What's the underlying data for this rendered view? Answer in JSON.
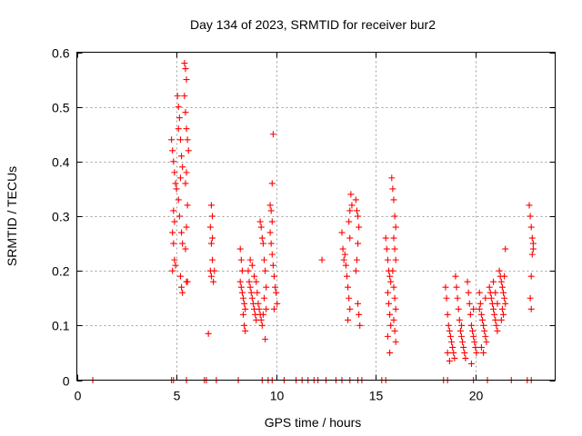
{
  "chart_data": {
    "type": "scatter",
    "title": "Day 134 of 2023, SRMTID for receiver bur2",
    "xlabel": "GPS time / hours",
    "ylabel": "SRMTID / TECUs",
    "xlim": [
      0,
      24
    ],
    "ylim": [
      0,
      0.6
    ],
    "xticks": [
      0,
      5,
      10,
      15,
      20
    ],
    "xtick_labels": [
      "0",
      "5",
      "10",
      "15",
      "20"
    ],
    "yticks": [
      0,
      0.1,
      0.2,
      0.3,
      0.4,
      0.5,
      0.6
    ],
    "ytick_labels": [
      "0",
      "0.1",
      "0.2",
      "0.3",
      "0.4",
      "0.5",
      "0.6"
    ],
    "grid": true,
    "marker": "plus",
    "series": [
      {
        "name": "SRMTID",
        "color": "#ff0000",
        "points": [
          [
            0.8,
            0.0
          ],
          [
            4.75,
            0.44
          ],
          [
            4.8,
            0.42
          ],
          [
            4.85,
            0.4
          ],
          [
            4.9,
            0.38
          ],
          [
            4.95,
            0.36
          ],
          [
            5.0,
            0.35
          ],
          [
            4.85,
            0.31
          ],
          [
            4.9,
            0.29
          ],
          [
            4.8,
            0.27
          ],
          [
            4.85,
            0.25
          ],
          [
            4.9,
            0.22
          ],
          [
            4.8,
            0.2
          ],
          [
            4.95,
            0.21
          ],
          [
            5.05,
            0.52
          ],
          [
            5.1,
            0.5
          ],
          [
            5.15,
            0.48
          ],
          [
            5.1,
            0.46
          ],
          [
            5.2,
            0.44
          ],
          [
            5.25,
            0.41
          ],
          [
            5.3,
            0.39
          ],
          [
            5.2,
            0.37
          ],
          [
            5.1,
            0.33
          ],
          [
            5.15,
            0.3
          ],
          [
            5.25,
            0.27
          ],
          [
            5.3,
            0.25
          ],
          [
            5.2,
            0.19
          ],
          [
            5.25,
            0.17
          ],
          [
            5.3,
            0.16
          ],
          [
            5.4,
            0.58
          ],
          [
            5.45,
            0.57
          ],
          [
            5.5,
            0.55
          ],
          [
            5.4,
            0.52
          ],
          [
            5.45,
            0.49
          ],
          [
            5.5,
            0.46
          ],
          [
            5.55,
            0.44
          ],
          [
            5.6,
            0.42
          ],
          [
            5.5,
            0.38
          ],
          [
            5.45,
            0.36
          ],
          [
            5.55,
            0.32
          ],
          [
            5.5,
            0.28
          ],
          [
            5.45,
            0.24
          ],
          [
            5.5,
            0.18
          ],
          [
            5.55,
            0.18
          ],
          [
            6.6,
            0.085
          ],
          [
            6.75,
            0.32
          ],
          [
            6.8,
            0.3
          ],
          [
            6.7,
            0.28
          ],
          [
            6.75,
            0.25
          ],
          [
            6.8,
            0.22
          ],
          [
            6.7,
            0.2
          ],
          [
            6.75,
            0.19
          ],
          [
            6.85,
            0.18
          ],
          [
            6.9,
            0.2
          ],
          [
            6.8,
            0.26
          ],
          [
            8.2,
            0.24
          ],
          [
            8.25,
            0.22
          ],
          [
            8.3,
            0.2
          ],
          [
            8.2,
            0.18
          ],
          [
            8.25,
            0.17
          ],
          [
            8.3,
            0.16
          ],
          [
            8.35,
            0.15
          ],
          [
            8.4,
            0.14
          ],
          [
            8.45,
            0.13
          ],
          [
            8.35,
            0.12
          ],
          [
            8.4,
            0.1
          ],
          [
            8.45,
            0.09
          ],
          [
            8.6,
            0.2
          ],
          [
            8.65,
            0.18
          ],
          [
            8.7,
            0.17
          ],
          [
            8.75,
            0.16
          ],
          [
            8.8,
            0.15
          ],
          [
            8.85,
            0.14
          ],
          [
            8.9,
            0.13
          ],
          [
            8.95,
            0.12
          ],
          [
            9.0,
            0.11
          ],
          [
            8.9,
            0.19
          ],
          [
            8.8,
            0.21
          ],
          [
            8.7,
            0.22
          ],
          [
            9.0,
            0.18
          ],
          [
            9.05,
            0.16
          ],
          [
            9.1,
            0.14
          ],
          [
            9.15,
            0.13
          ],
          [
            9.2,
            0.12
          ],
          [
            9.25,
            0.11
          ],
          [
            9.3,
            0.1
          ],
          [
            9.35,
            0.12
          ],
          [
            9.2,
            0.29
          ],
          [
            9.25,
            0.28
          ],
          [
            9.3,
            0.26
          ],
          [
            9.35,
            0.25
          ],
          [
            9.4,
            0.22
          ],
          [
            9.45,
            0.2
          ],
          [
            9.5,
            0.17
          ],
          [
            9.4,
            0.15
          ],
          [
            9.5,
            0.13
          ],
          [
            9.45,
            0.075
          ],
          [
            9.7,
            0.32
          ],
          [
            9.75,
            0.31
          ],
          [
            9.8,
            0.29
          ],
          [
            9.7,
            0.27
          ],
          [
            9.75,
            0.25
          ],
          [
            9.8,
            0.23
          ],
          [
            9.85,
            0.21
          ],
          [
            9.9,
            0.19
          ],
          [
            9.95,
            0.17
          ],
          [
            10.0,
            0.16
          ],
          [
            10.05,
            0.14
          ],
          [
            9.9,
            0.13
          ],
          [
            9.8,
            0.36
          ],
          [
            9.85,
            0.45
          ],
          [
            12.3,
            0.22
          ],
          [
            13.3,
            0.27
          ],
          [
            13.35,
            0.24
          ],
          [
            13.4,
            0.22
          ],
          [
            13.45,
            0.23
          ],
          [
            13.5,
            0.21
          ],
          [
            13.55,
            0.19
          ],
          [
            13.6,
            0.17
          ],
          [
            13.65,
            0.15
          ],
          [
            13.7,
            0.13
          ],
          [
            13.6,
            0.11
          ],
          [
            13.65,
            0.29
          ],
          [
            13.7,
            0.31
          ],
          [
            13.75,
            0.34
          ],
          [
            13.8,
            0.32
          ],
          [
            13.7,
            0.26
          ],
          [
            14.0,
            0.33
          ],
          [
            14.05,
            0.31
          ],
          [
            14.1,
            0.3
          ],
          [
            14.15,
            0.28
          ],
          [
            14.1,
            0.25
          ],
          [
            14.05,
            0.22
          ],
          [
            14.0,
            0.2
          ],
          [
            14.1,
            0.14
          ],
          [
            14.15,
            0.12
          ],
          [
            14.2,
            0.1
          ],
          [
            15.5,
            0.26
          ],
          [
            15.55,
            0.24
          ],
          [
            15.6,
            0.22
          ],
          [
            15.65,
            0.2
          ],
          [
            15.7,
            0.19
          ],
          [
            15.75,
            0.18
          ],
          [
            15.6,
            0.16
          ],
          [
            15.65,
            0.14
          ],
          [
            15.7,
            0.12
          ],
          [
            15.75,
            0.1
          ],
          [
            15.6,
            0.08
          ],
          [
            15.7,
            0.05
          ],
          [
            15.8,
            0.37
          ],
          [
            15.85,
            0.35
          ],
          [
            15.9,
            0.33
          ],
          [
            15.95,
            0.3
          ],
          [
            16.0,
            0.28
          ],
          [
            15.9,
            0.26
          ],
          [
            15.95,
            0.24
          ],
          [
            16.0,
            0.22
          ],
          [
            15.85,
            0.2
          ],
          [
            15.9,
            0.17
          ],
          [
            15.95,
            0.15
          ],
          [
            16.0,
            0.13
          ],
          [
            15.9,
            0.11
          ],
          [
            15.95,
            0.09
          ],
          [
            16.0,
            0.07
          ],
          [
            18.5,
            0.17
          ],
          [
            18.55,
            0.15
          ],
          [
            18.6,
            0.12
          ],
          [
            18.65,
            0.1
          ],
          [
            18.7,
            0.09
          ],
          [
            18.75,
            0.08
          ],
          [
            18.8,
            0.07
          ],
          [
            18.85,
            0.06
          ],
          [
            18.9,
            0.05
          ],
          [
            18.95,
            0.04
          ],
          [
            18.6,
            0.05
          ],
          [
            18.7,
            0.035
          ],
          [
            19.0,
            0.19
          ],
          [
            19.05,
            0.17
          ],
          [
            19.1,
            0.15
          ],
          [
            19.15,
            0.13
          ],
          [
            19.2,
            0.11
          ],
          [
            19.25,
            0.09
          ],
          [
            19.3,
            0.08
          ],
          [
            19.35,
            0.07
          ],
          [
            19.4,
            0.06
          ],
          [
            19.45,
            0.05
          ],
          [
            19.5,
            0.04
          ],
          [
            19.3,
            0.1
          ],
          [
            19.6,
            0.18
          ],
          [
            19.65,
            0.16
          ],
          [
            19.7,
            0.14
          ],
          [
            19.75,
            0.12
          ],
          [
            19.8,
            0.1
          ],
          [
            19.85,
            0.09
          ],
          [
            19.9,
            0.08
          ],
          [
            19.95,
            0.07
          ],
          [
            20.0,
            0.06
          ],
          [
            20.05,
            0.05
          ],
          [
            19.8,
            0.03
          ],
          [
            19.9,
            0.13
          ],
          [
            20.2,
            0.16
          ],
          [
            20.25,
            0.14
          ],
          [
            20.3,
            0.12
          ],
          [
            20.35,
            0.11
          ],
          [
            20.4,
            0.1
          ],
          [
            20.45,
            0.09
          ],
          [
            20.5,
            0.08
          ],
          [
            20.55,
            0.07
          ],
          [
            20.3,
            0.06
          ],
          [
            20.4,
            0.05
          ],
          [
            20.2,
            0.13
          ],
          [
            20.5,
            0.15
          ],
          [
            20.7,
            0.17
          ],
          [
            20.75,
            0.16
          ],
          [
            20.8,
            0.15
          ],
          [
            20.85,
            0.14
          ],
          [
            20.9,
            0.13
          ],
          [
            20.95,
            0.12
          ],
          [
            21.0,
            0.11
          ],
          [
            21.05,
            0.1
          ],
          [
            21.1,
            0.09
          ],
          [
            20.9,
            0.18
          ],
          [
            21.0,
            0.16
          ],
          [
            21.1,
            0.14
          ],
          [
            21.2,
            0.2
          ],
          [
            21.25,
            0.19
          ],
          [
            21.3,
            0.18
          ],
          [
            21.35,
            0.17
          ],
          [
            21.4,
            0.16
          ],
          [
            21.45,
            0.15
          ],
          [
            21.5,
            0.14
          ],
          [
            21.35,
            0.13
          ],
          [
            21.4,
            0.12
          ],
          [
            21.5,
            0.24
          ],
          [
            21.3,
            0.11
          ],
          [
            21.45,
            0.19
          ],
          [
            22.7,
            0.32
          ],
          [
            22.75,
            0.3
          ],
          [
            22.8,
            0.28
          ],
          [
            22.85,
            0.26
          ],
          [
            22.9,
            0.25
          ],
          [
            22.85,
            0.23
          ],
          [
            22.8,
            0.19
          ],
          [
            22.75,
            0.15
          ],
          [
            22.8,
            0.13
          ],
          [
            22.9,
            0.24
          ],
          [
            4.75,
            0.0
          ],
          [
            4.85,
            0.0
          ],
          [
            5.5,
            0.0
          ],
          [
            6.4,
            0.0
          ],
          [
            6.5,
            0.0
          ],
          [
            7.0,
            0.0
          ],
          [
            8.1,
            0.0
          ],
          [
            9.3,
            0.0
          ],
          [
            9.6,
            0.0
          ],
          [
            9.8,
            0.0
          ],
          [
            10.4,
            0.0
          ],
          [
            11.0,
            0.0
          ],
          [
            11.3,
            0.0
          ],
          [
            11.6,
            0.0
          ],
          [
            11.9,
            0.0
          ],
          [
            12.1,
            0.0
          ],
          [
            12.5,
            0.0
          ],
          [
            13.0,
            0.0
          ],
          [
            13.3,
            0.0
          ],
          [
            13.7,
            0.0
          ],
          [
            14.1,
            0.0
          ],
          [
            14.3,
            0.0
          ],
          [
            15.3,
            0.0
          ],
          [
            15.5,
            0.0
          ],
          [
            18.4,
            0.0
          ],
          [
            18.6,
            0.0
          ],
          [
            19.9,
            0.0
          ],
          [
            20.6,
            0.0
          ],
          [
            21.8,
            0.0
          ],
          [
            22.6,
            0.0
          ],
          [
            22.8,
            0.0
          ]
        ]
      }
    ]
  }
}
